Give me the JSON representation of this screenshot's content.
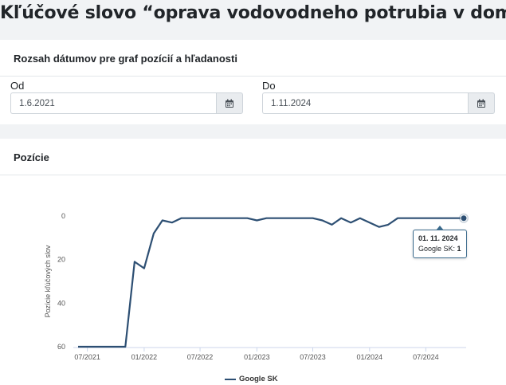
{
  "page": {
    "title": "Kľúčové slovo “oprava vodovodneho potrubia v dome"
  },
  "date_range": {
    "header": "Rozsah dátumov pre graf pozícií a hľadanosti",
    "from_label": "Od",
    "from_value": "1.6.2021",
    "to_label": "Do",
    "to_value": "1.11.2024",
    "icon": "calendar-icon"
  },
  "positions": {
    "header": "Pozície"
  },
  "chart_data": {
    "type": "line",
    "ylabel": "Pozície kľúčových slov",
    "xlabel": "",
    "ylim": [
      0,
      60
    ],
    "y_inverted": true,
    "y_ticks": [
      "0",
      "20",
      "40",
      "60"
    ],
    "x_ticks": [
      "07/2021",
      "01/2022",
      "07/2022",
      "01/2023",
      "07/2023",
      "01/2024",
      "07/2024"
    ],
    "x_tick_dates": [
      "2021-07-01",
      "2022-01-01",
      "2022-07-01",
      "2023-01-01",
      "2023-07-01",
      "2024-01-01",
      "2024-07-01"
    ],
    "xlim": [
      "2021-06-01",
      "2024-11-01"
    ],
    "grid": false,
    "legend": "bottom",
    "series": [
      {
        "name": "Google SK",
        "color": "#2d4f73",
        "points": [
          [
            "2021-06-01",
            60
          ],
          [
            "2021-11-01",
            60
          ],
          [
            "2021-12-01",
            21
          ],
          [
            "2022-01-01",
            24
          ],
          [
            "2022-02-01",
            8
          ],
          [
            "2022-03-01",
            2
          ],
          [
            "2022-04-01",
            3
          ],
          [
            "2022-05-01",
            1
          ],
          [
            "2022-12-01",
            1
          ],
          [
            "2023-01-01",
            2
          ],
          [
            "2023-02-01",
            1
          ],
          [
            "2023-07-01",
            1
          ],
          [
            "2023-08-01",
            2
          ],
          [
            "2023-09-01",
            4
          ],
          [
            "2023-10-01",
            1
          ],
          [
            "2023-11-01",
            3
          ],
          [
            "2023-12-01",
            1
          ],
          [
            "2024-01-01",
            3
          ],
          [
            "2024-02-01",
            5
          ],
          [
            "2024-03-01",
            4
          ],
          [
            "2024-04-01",
            1
          ],
          [
            "2024-11-01",
            1
          ]
        ]
      }
    ],
    "tooltip": {
      "date": "01. 11. 2024",
      "series_label": "Google SK:",
      "value": "1"
    }
  }
}
